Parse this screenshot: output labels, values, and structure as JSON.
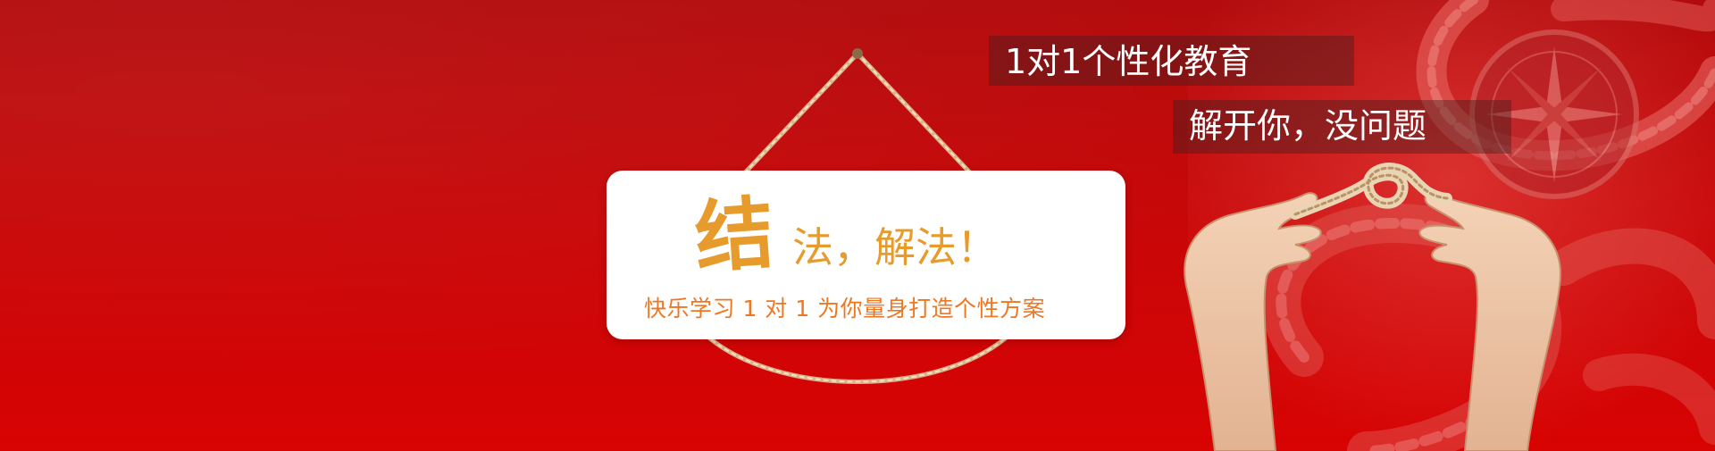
{
  "sign": {
    "headline_big_char": "结",
    "headline_rest": "法，解法！",
    "subline": "快乐学习 1 对 1 为你量身打造个性方案"
  },
  "tags": {
    "line1": "1对1个性化教育",
    "line2": "解开你，没问题"
  },
  "colors": {
    "background_top": "#b30b0d",
    "background_bottom": "#d80303",
    "headline": "#e69b2c",
    "subline": "#f07620",
    "rope": "#d9b48a",
    "tag_text": "#ffffff"
  },
  "icons": {
    "hanging_rope": "hanging-rope-icon",
    "hands_with_knot": "hands-knot-illustration",
    "compass": "compass-illustration"
  }
}
